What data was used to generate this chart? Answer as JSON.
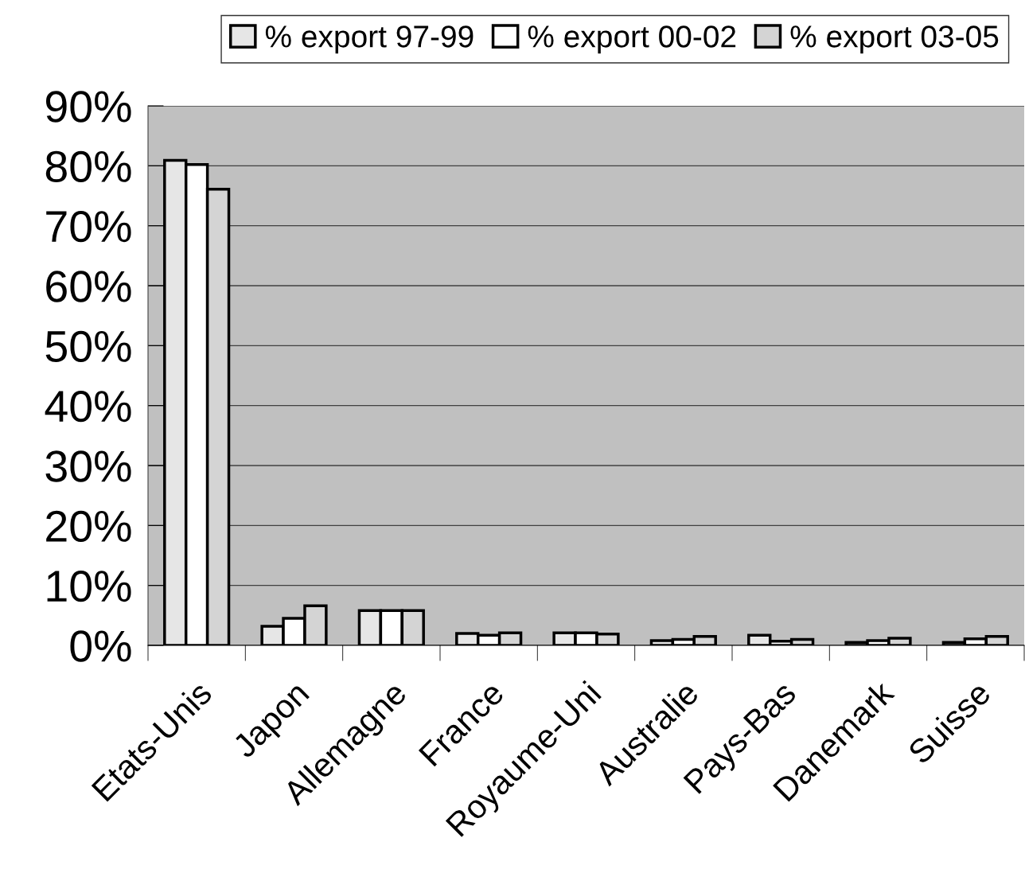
{
  "chart_data": {
    "type": "bar",
    "categories": [
      "Etats-Unis",
      "Japon",
      "Allemagne",
      "France",
      "Royaume-Uni",
      "Australie",
      "Pays-Bas",
      "Danemark",
      "Suisse"
    ],
    "series": [
      {
        "name": "% export 97-99",
        "color": "#e6e6e6",
        "values": [
          80.9,
          3.2,
          5.8,
          2.0,
          2.1,
          0.8,
          1.7,
          0.5,
          0.5
        ]
      },
      {
        "name": "% export 00-02",
        "color": "#ffffff",
        "values": [
          80.2,
          4.5,
          5.8,
          1.7,
          2.1,
          1.0,
          0.7,
          0.8,
          1.1
        ]
      },
      {
        "name": "% export 03-05",
        "color": "#d4d4d4",
        "values": [
          76.1,
          6.6,
          5.8,
          2.1,
          1.9,
          1.5,
          1.0,
          1.2,
          1.5
        ]
      }
    ],
    "ylim": [
      0,
      90
    ],
    "yticks": [
      {
        "value": 0,
        "label": "0%"
      },
      {
        "value": 10,
        "label": "10%"
      },
      {
        "value": 20,
        "label": "20%"
      },
      {
        "value": 30,
        "label": "30%"
      },
      {
        "value": 40,
        "label": "40%"
      },
      {
        "value": 50,
        "label": "50%"
      },
      {
        "value": 60,
        "label": "60%"
      },
      {
        "value": 70,
        "label": "70%"
      },
      {
        "value": 80,
        "label": "80%"
      },
      {
        "value": 90,
        "label": "90%"
      }
    ],
    "grid": "y",
    "legend": "top"
  }
}
